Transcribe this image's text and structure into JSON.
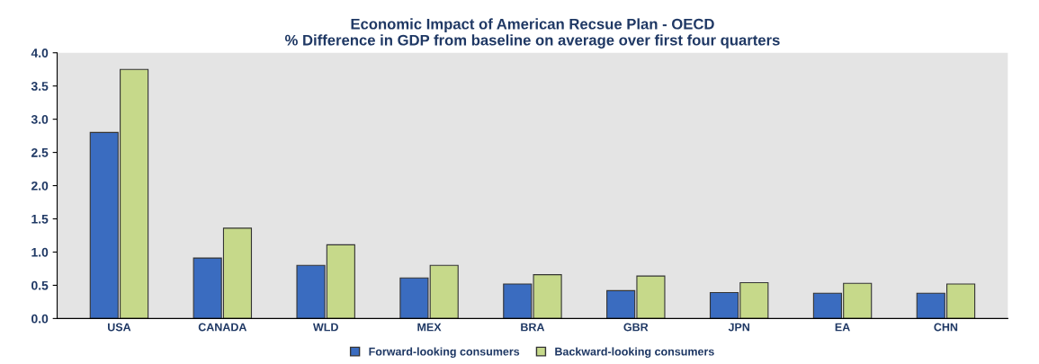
{
  "chart_data": {
    "type": "bar",
    "title": "Economic Impact of American Recsue Plan - OECD\n% Difference in GDP from baseline on average over first four quarters",
    "categories": [
      "USA",
      "CANADA",
      "WLD",
      "MEX",
      "BRA",
      "GBR",
      "JPN",
      "EA",
      "CHN"
    ],
    "series": [
      {
        "name": "Forward-looking consumers",
        "color": "#3a6cc0",
        "values": [
          2.8,
          0.91,
          0.8,
          0.61,
          0.52,
          0.42,
          0.39,
          0.38,
          0.38
        ]
      },
      {
        "name": "Backward-looking consumers",
        "color": "#c6d98a",
        "values": [
          3.75,
          1.36,
          1.11,
          0.8,
          0.66,
          0.64,
          0.54,
          0.53,
          0.52
        ]
      }
    ],
    "ylim": [
      0,
      4
    ],
    "yticks": [
      {
        "value": 0,
        "label": "0.0"
      },
      {
        "value": 0.5,
        "label": "0.5"
      },
      {
        "value": 1,
        "label": "1.0"
      },
      {
        "value": 1.5,
        "label": "1.5"
      },
      {
        "value": 2,
        "label": "2.0"
      },
      {
        "value": 2.5,
        "label": "2.5"
      },
      {
        "value": 3,
        "label": "3.0"
      },
      {
        "value": 3.5,
        "label": "3.5"
      },
      {
        "value": 4,
        "label": "4.0"
      }
    ],
    "grid": false,
    "legend": "bottom"
  }
}
